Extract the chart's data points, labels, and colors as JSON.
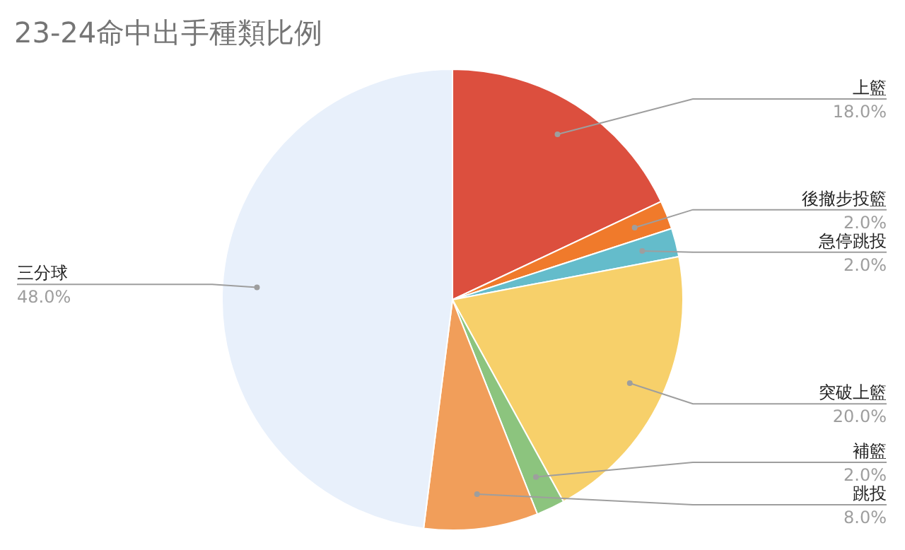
{
  "chart_data": {
    "type": "pie",
    "title": "23-24命中出手種類比例",
    "categories": [
      "上籃",
      "後撤步投籃",
      "急停跳投",
      "突破上籃",
      "補籃",
      "跳投",
      "三分球"
    ],
    "values": [
      18,
      2,
      2,
      20,
      2,
      8,
      48
    ],
    "colors": [
      "#dc4f3e",
      "#f07a2b",
      "#64bccb",
      "#f7d06a",
      "#8cc47e",
      "#f19e5a",
      "#e8f0fb"
    ],
    "value_labels": [
      "18.0%",
      "2.0%",
      "2.0%",
      "20.0%",
      "2.0%",
      "8.0%",
      "48.0%"
    ]
  }
}
